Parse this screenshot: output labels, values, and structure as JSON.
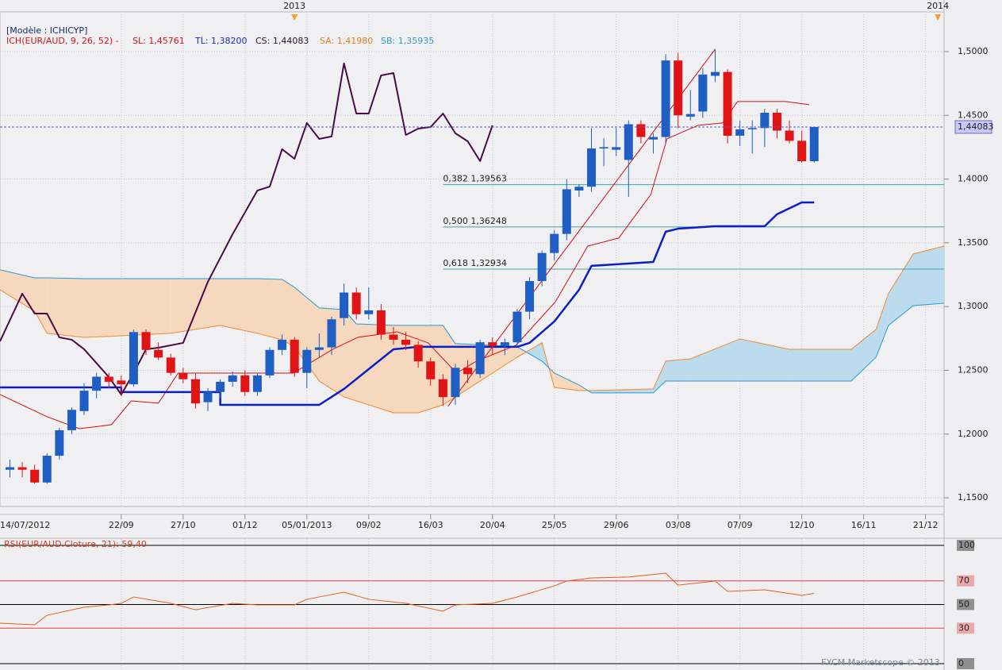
{
  "header": {
    "model": "[Modèle : ICHICYP]",
    "indicator": "ICH(EUR/AUD, 9, 26, 52) -",
    "sl": "SL: 1,45761",
    "tl": "TL: 1,38200",
    "cs": "CS: 1,44083",
    "sa": "SA: 1,41980",
    "sb": "SB: 1,35935"
  },
  "chart_data": [
    {
      "type": "candlestick",
      "x": [
        -3,
        -2,
        -1,
        0,
        1,
        2,
        3,
        4,
        5,
        6,
        7,
        8,
        9,
        10,
        11,
        12,
        13,
        14,
        15,
        16,
        17,
        18,
        19,
        20,
        21,
        22,
        23,
        24,
        25,
        26,
        27,
        28,
        29,
        30,
        31,
        32,
        33,
        34,
        35,
        36,
        37,
        38,
        39,
        40,
        41,
        42,
        43,
        44,
        45,
        46,
        47,
        48,
        49,
        50,
        51,
        52,
        53,
        54,
        55,
        56,
        57,
        58,
        59,
        60,
        61,
        62
      ],
      "open": [
        1.172,
        1.174,
        1.172,
        1.162,
        1.183,
        1.203,
        1.218,
        1.234,
        1.245,
        1.242,
        1.239,
        1.28,
        1.266,
        1.26,
        1.248,
        1.243,
        1.225,
        1.233,
        1.241,
        1.246,
        1.233,
        1.246,
        1.266,
        1.274,
        1.248,
        1.266,
        1.268,
        1.291,
        1.311,
        1.294,
        1.297,
        1.278,
        1.274,
        1.27,
        1.257,
        1.243,
        1.229,
        1.252,
        1.247,
        1.272,
        1.269,
        1.272,
        1.296,
        1.32,
        1.342,
        1.357,
        1.391,
        1.394,
        1.424,
        1.423,
        1.415,
        1.443,
        1.431,
        1.433,
        1.493,
        1.449,
        1.453,
        1.481,
        1.484,
        1.434,
        1.439,
        1.44,
        1.452,
        1.438,
        1.43,
        1.414
      ],
      "high": [
        1.18,
        1.178,
        1.176,
        1.185,
        1.205,
        1.221,
        1.24,
        1.248,
        1.248,
        1.246,
        1.282,
        1.282,
        1.272,
        1.263,
        1.252,
        1.248,
        1.236,
        1.243,
        1.249,
        1.25,
        1.248,
        1.268,
        1.278,
        1.276,
        1.268,
        1.279,
        1.292,
        1.318,
        1.315,
        1.315,
        1.302,
        1.284,
        1.28,
        1.273,
        1.26,
        1.247,
        1.255,
        1.258,
        1.274,
        1.276,
        1.275,
        1.298,
        1.323,
        1.344,
        1.36,
        1.4,
        1.396,
        1.44,
        1.432,
        1.44,
        1.446,
        1.446,
        1.436,
        1.498,
        1.499,
        1.47,
        1.487,
        1.502,
        1.486,
        1.446,
        1.446,
        1.455,
        1.455,
        1.446,
        1.438,
        1.441
      ],
      "low": [
        1.166,
        1.166,
        1.161,
        1.161,
        1.18,
        1.2,
        1.215,
        1.228,
        1.236,
        1.23,
        1.237,
        1.262,
        1.258,
        1.246,
        1.24,
        1.22,
        1.218,
        1.228,
        1.237,
        1.23,
        1.23,
        1.244,
        1.262,
        1.245,
        1.236,
        1.26,
        1.262,
        1.285,
        1.29,
        1.29,
        1.274,
        1.27,
        1.266,
        1.252,
        1.238,
        1.222,
        1.223,
        1.24,
        1.244,
        1.262,
        1.262,
        1.268,
        1.29,
        1.316,
        1.336,
        1.352,
        1.386,
        1.39,
        1.41,
        1.418,
        1.386,
        1.428,
        1.42,
        1.428,
        1.44,
        1.446,
        1.448,
        1.476,
        1.428,
        1.426,
        1.42,
        1.425,
        1.432,
        1.428,
        1.413,
        1.413
      ],
      "close": [
        1.174,
        1.172,
        1.162,
        1.183,
        1.203,
        1.219,
        1.234,
        1.245,
        1.241,
        1.239,
        1.28,
        1.266,
        1.26,
        1.248,
        1.243,
        1.224,
        1.233,
        1.241,
        1.246,
        1.233,
        1.246,
        1.266,
        1.274,
        1.248,
        1.266,
        1.268,
        1.29,
        1.311,
        1.294,
        1.297,
        1.278,
        1.274,
        1.27,
        1.257,
        1.243,
        1.229,
        1.252,
        1.247,
        1.272,
        1.269,
        1.272,
        1.296,
        1.32,
        1.342,
        1.357,
        1.392,
        1.394,
        1.424,
        1.425,
        1.425,
        1.443,
        1.433,
        1.433,
        1.493,
        1.45,
        1.451,
        1.482,
        1.484,
        1.434,
        1.439,
        1.44,
        1.452,
        1.438,
        1.43,
        1.414,
        1.44083
      ],
      "up_color": "#1f5fc4",
      "down_color": "#e01414",
      "cloud": {
        "x": [
          -3.8,
          -1,
          0,
          3,
          6,
          10,
          14,
          17,
          19,
          20,
          22,
          24,
          25,
          28,
          30,
          32,
          33,
          36,
          38,
          40,
          41,
          43,
          44,
          49,
          50,
          52,
          56,
          60,
          65,
          67,
          68,
          70,
          72.5
        ],
        "span_a": [
          1.3132,
          1.2964,
          1.279,
          1.2758,
          1.2771,
          1.279,
          1.2852,
          1.279,
          1.274,
          1.2684,
          1.2416,
          1.2291,
          1.226,
          1.2167,
          1.2167,
          1.2229,
          1.2291,
          1.2478,
          1.2603,
          1.2715,
          1.2366,
          1.2341,
          1.2341,
          1.2354,
          1.2572,
          1.259,
          1.2746,
          1.2665,
          1.2665,
          1.2821,
          1.3101,
          1.3412,
          1.3474
        ],
        "span_b": [
          1.3288,
          1.3225,
          1.3225,
          1.3219,
          1.3219,
          1.3219,
          1.3219,
          1.3219,
          1.3213,
          1.3151,
          1.2989,
          1.2976,
          1.2864,
          1.2852,
          1.2852,
          1.2852,
          1.2709,
          1.2696,
          1.2684,
          1.2572,
          1.2478,
          1.2385,
          1.2323,
          1.2323,
          1.2416,
          1.2416,
          1.2416,
          1.2416,
          1.2416,
          1.2603,
          1.2852,
          1.3007,
          1.3026
        ],
        "span_a_color": "#f08a30",
        "span_b_color": "#2a9ad0",
        "bear_fill": "#f6d8bf",
        "bull_fill": "#bcdcee"
      },
      "lines": [
        {
          "color": "#d01010",
          "width": 1,
          "x": [
            -3.8,
            0,
            2.6,
            5.2,
            6.8,
            9,
            10.6,
            15.4,
            19.9,
            23.1,
            25.1,
            28.3,
            30.8,
            33.1,
            34.7,
            37.9,
            41.1,
            43.7,
            46.2,
            48.8,
            50.1,
            52.6,
            54.6,
            55.8,
            59.7,
            61.6
          ],
          "values": [
            1.231,
            1.2136,
            1.2042,
            1.2073,
            1.226,
            1.2242,
            1.2478,
            1.2478,
            1.2478,
            1.2665,
            1.2758,
            1.2802,
            1.2715,
            1.2478,
            1.2572,
            1.2696,
            1.3039,
            1.3474,
            1.3537,
            1.3879,
            1.4315,
            1.4421,
            1.444,
            1.4608,
            1.4608,
            1.4583
          ]
        },
        {
          "color": "#0a1ec8",
          "width": 2.5,
          "x": [
            -3.8,
            6,
            6,
            14,
            14,
            22,
            24,
            26,
            28,
            30,
            38,
            39,
            41,
            43,
            44,
            49,
            50,
            51,
            54,
            58,
            59,
            61,
            62
          ],
          "values": [
            1.2366,
            1.2366,
            1.2329,
            1.2329,
            1.2229,
            1.2229,
            1.2354,
            1.2509,
            1.2665,
            1.2684,
            1.2684,
            1.2715,
            1.2883,
            1.3132,
            1.3319,
            1.335,
            1.3587,
            1.3611,
            1.363,
            1.363,
            1.3724,
            1.3817,
            1.3817
          ]
        },
        {
          "color": "#4a0a48",
          "width": 2,
          "x": [
            -3.8,
            -2,
            -1,
            0,
            1,
            2,
            3,
            5,
            6,
            7,
            8,
            9,
            11,
            13,
            15,
            17,
            18,
            19,
            20,
            21,
            22,
            23,
            24,
            25,
            26,
            27,
            28,
            29,
            30,
            31,
            32,
            33,
            34,
            35,
            36
          ],
          "values": [
            1.2727,
            1.3101,
            1.2945,
            1.2945,
            1.2758,
            1.274,
            1.2665,
            1.2447,
            1.231,
            1.2478,
            1.2665,
            1.2677,
            1.2715,
            1.3194,
            1.3568,
            1.391,
            1.3941,
            1.4234,
            1.4159,
            1.444,
            1.4315,
            1.4334,
            1.4907,
            1.4514,
            1.4514,
            1.4813,
            1.4832,
            1.4346,
            1.4396,
            1.4408,
            1.4514,
            1.4359,
            1.4296,
            1.4141,
            1.4421
          ]
        },
        {
          "color": "#d01010",
          "width": 1,
          "x": [
            32.4,
            54
          ],
          "values": [
            1.2217,
            1.5019
          ]
        }
      ],
      "fib_levels": [
        {
          "value": 1.39563,
          "label": "0,382 1,39563"
        },
        {
          "value": 1.36248,
          "label": "0,500 1,36248"
        },
        {
          "value": 1.32934,
          "label": "0,618 1,32934"
        }
      ],
      "fib_start": 32,
      "fib_color": "#3aa6a6",
      "last_price": {
        "value": 1.44083,
        "label": "1,44083"
      },
      "xlim": [
        -3.8,
        72.5
      ],
      "ylim": [
        1.1432,
        1.5311
      ],
      "yticks": [
        {
          "value": 1.15,
          "label": "1,1500"
        },
        {
          "value": 1.2,
          "label": "1,2000"
        },
        {
          "value": 1.25,
          "label": "1,2500"
        },
        {
          "value": 1.3,
          "label": "1,3000"
        },
        {
          "value": 1.35,
          "label": "1,3500"
        },
        {
          "value": 1.4,
          "label": "1,4000"
        },
        {
          "value": 1.45,
          "label": "1,4500"
        },
        {
          "value": 1.5,
          "label": "1,5000"
        }
      ],
      "xticks": [
        {
          "value": -4,
          "label": "14/07/2012"
        },
        {
          "value": 6,
          "label": "22/09"
        },
        {
          "value": 11,
          "label": "27/10"
        },
        {
          "value": 16,
          "label": "01/12"
        },
        {
          "value": 21,
          "label": "05/01/2013"
        },
        {
          "value": 26,
          "label": "09/02"
        },
        {
          "value": 31,
          "label": "16/03"
        },
        {
          "value": 36,
          "label": "20/04"
        },
        {
          "value": 41,
          "label": "25/05"
        },
        {
          "value": 46,
          "label": "29/06"
        },
        {
          "value": 51,
          "label": "03/08"
        },
        {
          "value": 56,
          "label": "07/09"
        },
        {
          "value": 61,
          "label": "12/10"
        },
        {
          "value": 66,
          "label": "16/11"
        },
        {
          "value": 71,
          "label": "21/12"
        }
      ],
      "year_markers": [
        {
          "value": 20,
          "label": "2013"
        },
        {
          "value": 72,
          "label": "2014"
        }
      ],
      "grid": true
    },
    {
      "type": "line",
      "title": "RSI(EUR/AUD.Cloture, 21): 59,40",
      "x": [
        -3.8,
        -1,
        0,
        3,
        5,
        6,
        7,
        10,
        12,
        15,
        17,
        20,
        21,
        24,
        26,
        29,
        32,
        33,
        36,
        38,
        41,
        42,
        44,
        47,
        50,
        51,
        54,
        55,
        58,
        61,
        62
      ],
      "values": [
        34.2,
        32.9,
        40.9,
        47.7,
        49.7,
        51,
        56.4,
        51,
        45.6,
        51,
        49.7,
        49.7,
        54.4,
        60.4,
        54.4,
        51,
        44.3,
        49.7,
        51,
        56.4,
        65.8,
        69.8,
        72.5,
        73.2,
        76.5,
        66.4,
        69.8,
        61.1,
        62.4,
        57.7,
        59.4
      ],
      "color": "#e0601e",
      "xlim": [
        -3.8,
        72.5
      ],
      "ylim": [
        0,
        100
      ],
      "yticks": [
        100,
        70,
        50,
        30,
        0
      ],
      "ytick_colors": [
        "#000000",
        "#e04040",
        "#000000",
        "#e04040",
        "#000000"
      ]
    }
  ],
  "footer": "FXCM Marketscope © 2013"
}
